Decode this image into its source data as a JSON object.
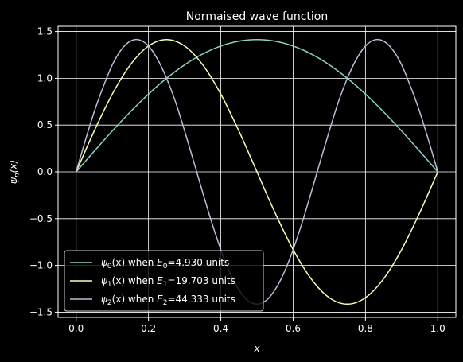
{
  "chart_data": {
    "type": "line",
    "title": "Normaised wave function",
    "xlabel": "x",
    "ylabel": "ψn(x)",
    "xlim": [
      -0.05,
      1.05
    ],
    "ylim": [
      -1.556,
      1.556
    ],
    "xticks": [
      0.0,
      0.2,
      0.4,
      0.6,
      0.8,
      1.0
    ],
    "xtick_labels": [
      "0.0",
      "0.2",
      "0.4",
      "0.6",
      "0.8",
      "1.0"
    ],
    "yticks": [
      -1.5,
      -1.0,
      -0.5,
      0.0,
      0.5,
      1.0,
      1.5
    ],
    "ytick_labels": [
      "−1.5",
      "−1.0",
      "−0.5",
      "0.0",
      "0.5",
      "1.0",
      "1.5"
    ],
    "grid": true,
    "legend_position": "lower-left",
    "background": "#000000",
    "series": [
      {
        "name": "ψ0(x) when E0=4.930 units",
        "legend": {
          "psi": "ψ",
          "n": "0",
          "when": "(x) when ",
          "E": "E",
          "rest": "=4.930 units"
        },
        "color": "#8dd3c7",
        "x": [
          0.0,
          0.05,
          0.1,
          0.15,
          0.2,
          0.25,
          0.3,
          0.35,
          0.4,
          0.45,
          0.5,
          0.55,
          0.6,
          0.65,
          0.7,
          0.75,
          0.8,
          0.85,
          0.9,
          0.95,
          1.0
        ],
        "y": [
          0.0,
          0.221,
          0.437,
          0.642,
          0.831,
          1.0,
          1.144,
          1.26,
          1.345,
          1.397,
          1.414,
          1.397,
          1.345,
          1.26,
          1.144,
          1.0,
          0.831,
          0.642,
          0.437,
          0.221,
          0.0
        ]
      },
      {
        "name": "ψ1(x) when E1=19.703 units",
        "legend": {
          "psi": "ψ",
          "n": "1",
          "when": "(x) when ",
          "E": "E",
          "rest": "=19.703 units"
        },
        "color": "#ffffb3",
        "x": [
          0.0,
          0.05,
          0.1,
          0.15,
          0.2,
          0.25,
          0.3,
          0.35,
          0.4,
          0.45,
          0.5,
          0.55,
          0.6,
          0.65,
          0.7,
          0.75,
          0.8,
          0.85,
          0.9,
          0.95,
          1.0
        ],
        "y": [
          0.0,
          0.437,
          0.831,
          1.144,
          1.345,
          1.414,
          1.345,
          1.144,
          0.831,
          0.437,
          0.0,
          -0.437,
          -0.831,
          -1.144,
          -1.345,
          -1.414,
          -1.345,
          -1.144,
          -0.831,
          -0.437,
          0.0
        ]
      },
      {
        "name": "ψ2(x) when E2=44.333 units",
        "legend": {
          "psi": "ψ",
          "n": "2",
          "when": "(x) when ",
          "E": "E",
          "rest": "=44.333 units"
        },
        "color": "#bebada",
        "x": [
          0.0,
          0.025,
          0.05,
          0.075,
          0.1,
          0.125,
          0.15,
          0.175,
          0.2,
          0.225,
          0.25,
          0.275,
          0.3,
          0.325,
          0.35,
          0.375,
          0.4,
          0.425,
          0.45,
          0.475,
          0.5,
          0.525,
          0.55,
          0.575,
          0.6,
          0.625,
          0.65,
          0.675,
          0.7,
          0.725,
          0.75,
          0.775,
          0.8,
          0.825,
          0.85,
          0.875,
          0.9,
          0.925,
          0.95,
          0.975,
          1.0
        ],
        "y": [
          0.0,
          0.331,
          0.642,
          0.91,
          1.144,
          1.307,
          1.397,
          1.41,
          1.345,
          1.204,
          1.0,
          0.745,
          0.437,
          0.111,
          -0.221,
          -0.541,
          -0.831,
          -1.077,
          -1.26,
          -1.376,
          -1.414,
          -1.376,
          -1.26,
          -1.077,
          -0.831,
          -0.541,
          -0.221,
          0.111,
          0.437,
          0.745,
          1.0,
          1.204,
          1.345,
          1.41,
          1.397,
          1.307,
          1.144,
          0.91,
          0.642,
          0.331,
          0.0
        ]
      }
    ]
  }
}
